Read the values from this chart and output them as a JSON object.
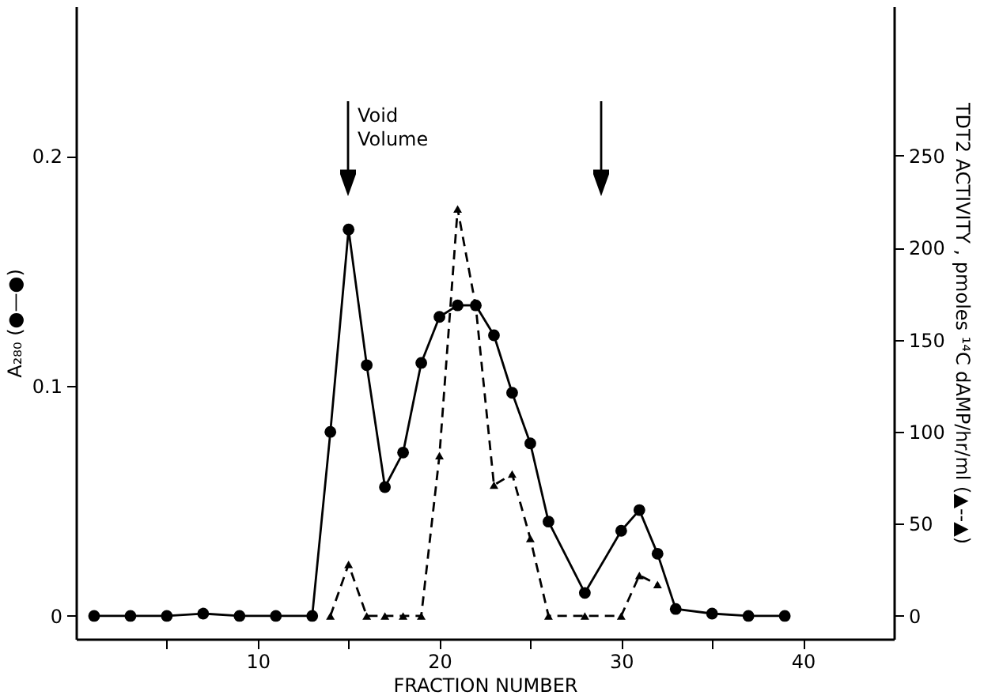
{
  "chart_data": {
    "type": "line",
    "xlabel": "FRACTION NUMBER",
    "ylabel": "A₂₈₀ (●—●)",
    "y2label": "TDT2 ACTIVITY , pmoles ¹⁴C dAMP/hr/ml (▲--▲)",
    "xlim": [
      0,
      45
    ],
    "xticks": [
      {
        "value": 5,
        "label": null
      },
      10,
      {
        "value": 15,
        "label": null
      },
      20,
      {
        "value": 25,
        "label": null
      },
      30,
      {
        "value": 35,
        "label": null
      },
      40
    ],
    "ylim": [
      -0.01,
      0.265
    ],
    "yticks": [
      0,
      0.1,
      0.2
    ],
    "y2lim": [
      -12.5,
      331
    ],
    "y2ticks": [
      0,
      50,
      100,
      150,
      200,
      250
    ],
    "series": [
      {
        "color": "#000000",
        "marker": "circle",
        "line_style": "solid",
        "x": [
          1,
          3,
          5,
          7,
          9,
          11,
          13,
          14,
          15,
          16,
          17,
          18,
          19,
          20,
          21,
          22,
          23,
          24,
          25,
          26,
          28,
          30,
          31,
          32,
          33,
          35,
          37,
          39
        ],
        "values": [
          0,
          0,
          0,
          0.001,
          0,
          0,
          0,
          0.08,
          0.168,
          0.109,
          0.056,
          0.071,
          0.11,
          0.13,
          0.135,
          0.135,
          0.122,
          0.097,
          0.075,
          0.041,
          0.01,
          0.037,
          0.046,
          0.027,
          0.003,
          0.001,
          0,
          0
        ]
      },
      {
        "color": "#000000",
        "marker": "triangle",
        "line_style": "dashed",
        "axis": "y2",
        "x": [
          14,
          15,
          16,
          17,
          18,
          19,
          20,
          21,
          22,
          23,
          24,
          25,
          26,
          28,
          30,
          31,
          32
        ],
        "values": [
          0,
          28,
          0,
          0,
          0,
          0,
          87,
          221,
          168,
          71,
          77,
          42,
          0,
          0,
          0,
          22,
          17
        ]
      }
    ],
    "annotations": [
      "Void Volume"
    ]
  }
}
